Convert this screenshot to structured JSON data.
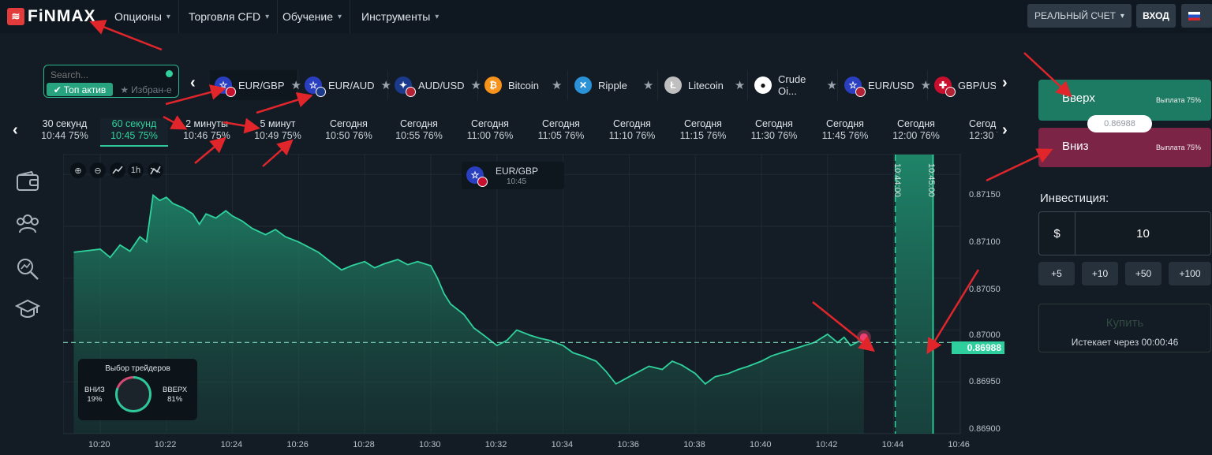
{
  "brand": {
    "name": "FiNMAX"
  },
  "nav": {
    "items": [
      {
        "label": "Опционы"
      },
      {
        "label": "Торговля CFD"
      },
      {
        "label": "Обучение"
      },
      {
        "label": "Инструменты"
      }
    ]
  },
  "account": {
    "mode_label": "РЕАЛЬНЫЙ СЧЕТ",
    "login_label": "ВХОД",
    "language": "Russian"
  },
  "search": {
    "placeholder": "Search...",
    "top_tab": "Топ актив",
    "fav_tab": "Избран-е"
  },
  "assets": [
    {
      "name": "EUR/GBP",
      "active": true
    },
    {
      "name": "EUR/AUD"
    },
    {
      "name": "AUD/USD"
    },
    {
      "name": "Bitcoin"
    },
    {
      "name": "Ripple"
    },
    {
      "name": "Litecoin"
    },
    {
      "name": "Crude Oi..."
    },
    {
      "name": "EUR/USD"
    },
    {
      "name": "GBP/USD"
    }
  ],
  "expirations": [
    {
      "label": "30 секунд",
      "time": "10:44",
      "payout": "75%"
    },
    {
      "label": "60 секунд",
      "time": "10:45",
      "payout": "75%",
      "active": true
    },
    {
      "label": "2 минуты",
      "time": "10:46",
      "payout": "75%"
    },
    {
      "label": "5 минут",
      "time": "10:49",
      "payout": "75%"
    },
    {
      "label": "Сегодня",
      "time": "10:50",
      "payout": "76%"
    },
    {
      "label": "Сегодня",
      "time": "10:55",
      "payout": "76%"
    },
    {
      "label": "Сегодня",
      "time": "11:00",
      "payout": "76%"
    },
    {
      "label": "Сегодня",
      "time": "11:05",
      "payout": "76%"
    },
    {
      "label": "Сегодня",
      "time": "11:10",
      "payout": "76%"
    },
    {
      "label": "Сегодня",
      "time": "11:15",
      "payout": "76%"
    },
    {
      "label": "Сегодня",
      "time": "11:30",
      "payout": "76%"
    },
    {
      "label": "Сегодня",
      "time": "11:45",
      "payout": "76%"
    },
    {
      "label": "Сегодня",
      "time": "12:00",
      "payout": "76%"
    },
    {
      "label": "Сегод",
      "time": "12:30",
      "payout": "7"
    }
  ],
  "chart": {
    "tools": [
      "zoom-in",
      "zoom-out",
      "chart-type",
      "1h",
      "indicators"
    ],
    "tool_timeframe": "1h",
    "pair": "EUR/GBP",
    "pair_time": "10:45",
    "current_price": "0.86988",
    "y_ticks": [
      "0.87150",
      "0.87100",
      "0.87050",
      "0.87000",
      "0.86950",
      "0.86900"
    ],
    "x_ticks": [
      "10:20",
      "10:22",
      "10:24",
      "10:26",
      "10:28",
      "10:30",
      "10:32",
      "10:34",
      "10:36",
      "10:38",
      "10:40",
      "10:42",
      "10:44",
      "10:46"
    ],
    "expiry_line_1": "10:44:00",
    "expiry_line_2": "10:45:00",
    "line_color": "#2fd29c"
  },
  "chart_data": {
    "type": "area",
    "ylim": [
      0.869,
      0.8717
    ],
    "xlim_minutes_from_1020": [
      -0.8,
      26
    ],
    "series": [
      {
        "x": [
          -0.8,
          0,
          0.3,
          0.6,
          0.9,
          1.2,
          1.4,
          1.6,
          1.8,
          2.0,
          2.2,
          2.5,
          2.8,
          3.0,
          3.2,
          3.5,
          3.8,
          4.0,
          4.3,
          4.6,
          5.0,
          5.3,
          5.6,
          6.0,
          6.3,
          6.6,
          7.0,
          7.3,
          7.6,
          8.0,
          8.3,
          8.6,
          9.0,
          9.3,
          9.6,
          10.0,
          10.2,
          10.4,
          10.6,
          11.0,
          11.3,
          11.6,
          12.0,
          12.3,
          12.6,
          13.0,
          13.3,
          13.6,
          14.0,
          14.3,
          14.6,
          15.0,
          15.3,
          15.6,
          16.0,
          16.3,
          16.6,
          17.0,
          17.3,
          17.6,
          18.0,
          18.3,
          18.6,
          19.0,
          19.3,
          19.6,
          20.0,
          20.3,
          20.6,
          21.0,
          21.3,
          21.6,
          22.0,
          22.3,
          22.5,
          22.7,
          23.0,
          23.1
        ],
        "y": [
          0.87075,
          0.87078,
          0.8707,
          0.87082,
          0.87076,
          0.8709,
          0.87085,
          0.8713,
          0.87125,
          0.87128,
          0.87122,
          0.87118,
          0.87112,
          0.87102,
          0.87112,
          0.87108,
          0.87115,
          0.8711,
          0.87105,
          0.87098,
          0.87092,
          0.87097,
          0.8709,
          0.87085,
          0.8708,
          0.87075,
          0.87065,
          0.87058,
          0.87062,
          0.87066,
          0.8706,
          0.87064,
          0.87068,
          0.87063,
          0.87066,
          0.87062,
          0.8705,
          0.87035,
          0.87025,
          0.87015,
          0.87002,
          0.86995,
          0.86985,
          0.8699,
          0.87,
          0.86995,
          0.86992,
          0.8699,
          0.86985,
          0.86978,
          0.86975,
          0.8697,
          0.8696,
          0.86948,
          0.86955,
          0.8696,
          0.86965,
          0.86962,
          0.8697,
          0.86966,
          0.86958,
          0.86948,
          0.86955,
          0.86958,
          0.86962,
          0.86965,
          0.8697,
          0.86975,
          0.86978,
          0.86982,
          0.86985,
          0.86988,
          0.86996,
          0.86988,
          0.86993,
          0.86985,
          0.8699,
          0.86988
        ]
      }
    ],
    "xlabel": "",
    "ylabel": "",
    "grid": true
  },
  "traders_poll": {
    "title": "Выбор трейдеров",
    "down_label": "ВНИЗ",
    "down_pct": "19%",
    "up_label": "ВВЕРХ",
    "up_pct": "81%",
    "up_share": 0.81
  },
  "trade": {
    "up_label": "Вверх",
    "up_payout": "Выплата 75%",
    "down_label": "Вниз",
    "down_payout": "Выплата 75%",
    "price": "0.86988",
    "investment_label": "Инвестиция:",
    "currency": "$",
    "amount": "10",
    "quick": [
      "+5",
      "+10",
      "+50",
      "+100"
    ],
    "buy_label": "Купить",
    "expires_label": "Истекает через",
    "expires_value": "00:00:46"
  },
  "colors": {
    "accent": "#2fd29c",
    "up": "#1d7a63",
    "down": "#7b2446",
    "annotation": "#e0252b"
  }
}
